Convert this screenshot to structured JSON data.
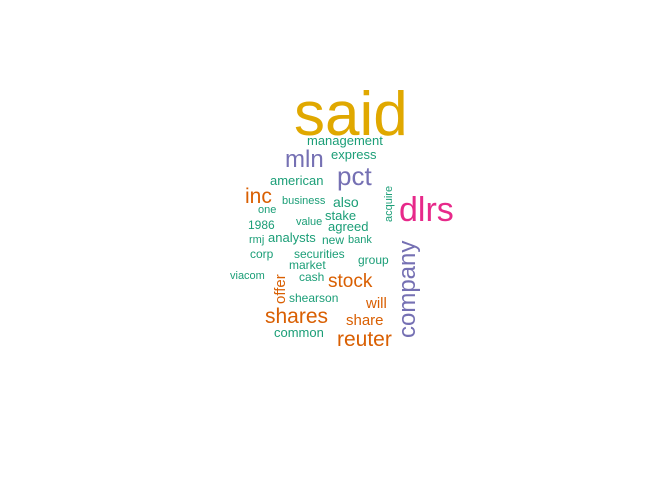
{
  "colors": {
    "gold": "#e0a800",
    "purple": "#7570b3",
    "magenta": "#e7298a",
    "orange": "#d95f02",
    "teal": "#1b9e77"
  },
  "words": [
    {
      "id": "said",
      "text": "said",
      "color": "#e0a800"
    },
    {
      "id": "dlrs",
      "text": "dlrs",
      "color": "#e7298a"
    },
    {
      "id": "company",
      "text": "company",
      "color": "#7570b3"
    },
    {
      "id": "mln",
      "text": "mln",
      "color": "#7570b3"
    },
    {
      "id": "pct",
      "text": "pct",
      "color": "#7570b3"
    },
    {
      "id": "shares",
      "text": "shares",
      "color": "#d95f02"
    },
    {
      "id": "reuter",
      "text": "reuter",
      "color": "#d95f02"
    },
    {
      "id": "stock",
      "text": "stock",
      "color": "#d95f02"
    },
    {
      "id": "inc",
      "text": "inc",
      "color": "#d95f02"
    },
    {
      "id": "share",
      "text": "share",
      "color": "#d95f02"
    },
    {
      "id": "will",
      "text": "will",
      "color": "#d95f02"
    },
    {
      "id": "offer",
      "text": "offer",
      "color": "#d95f02"
    },
    {
      "id": "management",
      "text": "management",
      "color": "#1b9e77"
    },
    {
      "id": "express",
      "text": "express",
      "color": "#1b9e77"
    },
    {
      "id": "american",
      "text": "american",
      "color": "#1b9e77"
    },
    {
      "id": "business",
      "text": "business",
      "color": "#1b9e77"
    },
    {
      "id": "also",
      "text": "also",
      "color": "#1b9e77"
    },
    {
      "id": "one",
      "text": "one",
      "color": "#1b9e77"
    },
    {
      "id": "value",
      "text": "value",
      "color": "#1b9e77"
    },
    {
      "id": "stake",
      "text": "stake",
      "color": "#1b9e77"
    },
    {
      "id": "acquire",
      "text": "acquire",
      "color": "#1b9e77"
    },
    {
      "id": "1986",
      "text": "1986",
      "color": "#1b9e77"
    },
    {
      "id": "agreed",
      "text": "agreed",
      "color": "#1b9e77"
    },
    {
      "id": "rmj",
      "text": "rmj",
      "color": "#1b9e77"
    },
    {
      "id": "analysts",
      "text": "analysts",
      "color": "#1b9e77"
    },
    {
      "id": "new",
      "text": "new",
      "color": "#1b9e77"
    },
    {
      "id": "bank",
      "text": "bank",
      "color": "#1b9e77"
    },
    {
      "id": "corp",
      "text": "corp",
      "color": "#1b9e77"
    },
    {
      "id": "securities",
      "text": "securities",
      "color": "#1b9e77"
    },
    {
      "id": "group",
      "text": "group",
      "color": "#1b9e77"
    },
    {
      "id": "market",
      "text": "market",
      "color": "#1b9e77"
    },
    {
      "id": "viacom",
      "text": "viacom",
      "color": "#1b9e77"
    },
    {
      "id": "cash",
      "text": "cash",
      "color": "#1b9e77"
    },
    {
      "id": "shearson",
      "text": "shearson",
      "color": "#1b9e77"
    },
    {
      "id": "common",
      "text": "common",
      "color": "#1b9e77"
    }
  ]
}
